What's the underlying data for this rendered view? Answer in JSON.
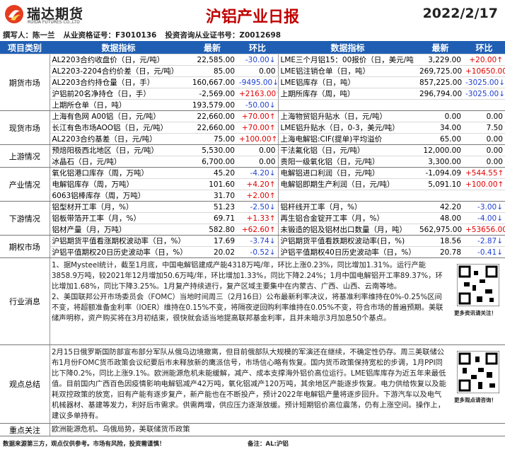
{
  "header": {
    "logo": "瑞达期货",
    "logo_sub": "RUIDA FUTURES CO.,LTD",
    "title": "沪铝产业日报",
    "date": "2022/2/17",
    "author": [
      "撰写人：陈一兰",
      "从业资格证号：F3010136",
      "投资咨询从业证书号：Z0012698"
    ]
  },
  "table": {
    "columns": [
      "项目类别",
      "数据指标",
      "最新",
      "环比",
      "数据指标",
      "最新",
      "环比"
    ],
    "groups": [
      {
        "name": "期货市场",
        "rows": [
          [
            "AL2203合约收盘价（日，元/吨）",
            "22,585.00",
            "-30.00↓",
            "LME三个月铝15：00报价（日，美元/吨",
            "3,229.00",
            "+20.00↑"
          ],
          [
            "AL2203-2204合约价差（日，元/吨）",
            "85.00",
            "0.00",
            "LME铝注销仓单（日，吨）",
            "269,725.00",
            "+10650.00↑"
          ],
          [
            "AL2203合约持仓量（日，手）",
            "160,667.00",
            "-9495.00↓",
            "LME铝库存（日，吨）",
            "857,225.00",
            "-3025.00↓"
          ],
          [
            "沪铝前20名净持仓（日，手）",
            "-2,569.00",
            "+2163.00↑",
            "上期所库存（周，吨）",
            "296,794.00",
            "-3025.00↓"
          ],
          [
            "上期所仓单（日，吨）",
            "193,579.00",
            "-50.00↓"
          ]
        ]
      },
      {
        "name": "现货市场",
        "rows": [
          [
            "上海有色网 A00铝（日，元/吨）",
            "22,660.00",
            "+70.00↑",
            "上海物贸铝升贴水（日，元/吨）",
            "0.00",
            "0.00"
          ],
          [
            "长江有色市场AOO铝（日，元/吨）",
            "22,660.00",
            "+70.00↑",
            "LME铝升贴水（日，0-3，美元/吨）",
            "34.00",
            "7.50"
          ],
          [
            "AL2203合约基差（日，元/吨）",
            "75.00",
            "+100.00↑",
            "上海电解铝:CIF(提单)平均溢价",
            "65.00",
            "0.00"
          ]
        ]
      },
      {
        "name": "上游情况",
        "rows": [
          [
            "预焙阳极西北地区（日，元/吨）",
            "5,530.00",
            "0.00",
            "干法氟化铝（日，元/吨）",
            "12,000.00",
            "0.00"
          ],
          [
            "冰晶石（日，元/吨）",
            "6,700.00",
            "0.00",
            "贵阳一级氧化铝（日，元/吨）",
            "3,300.00",
            "0.00"
          ]
        ]
      },
      {
        "name": "产业情况",
        "rows": [
          [
            "氧化铝港口库存（周，万吨）",
            "45.20",
            "-4.20↓",
            "电解铝进口利润（日，元/吨）",
            "-1,094.09",
            "+544.55↑"
          ],
          [
            "电解铝库存（周，万吨）",
            "101.60",
            "+4.20↑",
            "电解铝即期生产利润（日，元/吨）",
            "5,091.10",
            "+100.00↑"
          ],
          [
            "6063铝棒库存（周，万吨）",
            "31.70",
            "+2.00↑"
          ]
        ]
      },
      {
        "name": "下游情况",
        "rows": [
          [
            "铝型材开工率（月，%）",
            "51.23",
            "-2.50↓",
            "铝杆线开工率（月，%）",
            "42.20",
            "-3.00↓"
          ],
          [
            "铝板带箔开工率（月，%）",
            "69.71",
            "+1.33↑",
            "再生铝合金锭开工率（月，%）",
            "48.00",
            "-4.00↓"
          ],
          [
            "铝材产量（月，万吨）",
            "582.80",
            "+62.60↑",
            "未锻造的铝及铝材出口数量（月，吨）",
            "562,975.00",
            "+53656.00↑"
          ]
        ]
      },
      {
        "name": "期权市场",
        "rows": [
          [
            "沪铝期货平值看涨期权波动率（日，%）",
            "17.69",
            "-3.74↓",
            "沪铝期货平值看跌期权波动率(日，%)",
            "18.56",
            "-2.87↓"
          ],
          [
            "沪铝平值期权20日历史波动率（日，%）",
            "20.02",
            "-0.52↓",
            "沪铝平值期权40日历史波动率（日，%）",
            "20.78",
            "-0.41↓"
          ]
        ]
      }
    ]
  },
  "news": {
    "label": "行业消息",
    "qr_label": "更多资讯请关注！",
    "items": [
      "1、据Mysteel统计，截至1月底，中国电解铝建成产能4318万吨/年，环比上涨0.23%，同比增加1.31%。运行产能3858.9万吨，较2021年12月增加50.6万吨/年，环比增加1.33%，同比下降2.24%；1月中国电解铝开工率89.37%，环比增加1.68%，同比下降3.25%。1月复产持续进行，复产区域主要集中在内蒙古、广西、山西、云南等地。",
      "2、美国联邦公开市场委员会（FOMC）当地时间周三（2月16日）公布最新利率决议，将基准利率维持在0%-0.25%区间不变，将超额准备金利率（IOER）维持在0.15%不变，将隔夜逆回购利率维持在0.05%不变，符合市场的普遍预期。美联储声明称，资产购买将在3月初结束，很快就会适当地提高联邦基金利率，且并未暗示3月加息50个基点。"
    ]
  },
  "view": {
    "label": "观点总结",
    "qr_label": "更多观点请咨询！",
    "text": "2月15日俄罗斯国防部宣布部分军队从俄乌边境撤离，但目前俄部队大规模的军演还在继续，不确定性仍存。周三美联储公布1月份FOMC货币政策会议纪要后市未释放新的鹰派信号，市场信心略有恢复。国内货币政策保持宽松的步调，1月PPI同比下降0.2%，同比上涨9.1%。欧洲能源危机未能缓解，减产、成本支撑海外铝价高位运行。LME铝库库存为近五年来最低值。目前国内广西百色因疫情影响电解铝减产42万吨，氧化铝减产120万吨，其余地区产能逐步恢复。电力供给恢复以及能耗双控政策的放宽，旧有产能有逐步复产，新产能也在不断投产，预计2022年电解铝产量将逐步回升。下游汽车以及电气机械器材、基建等发力，利好后市需求。供需两增，供应压力逐渐放缓。预计短期铝价高位震荡，仍有上涨空间。操作上，建议多单持有。"
  },
  "focus": {
    "label": "重点关注",
    "text": "欧洲能源危机、乌俄局势，美联储货币政策"
  },
  "footer": {
    "disclaimer": "数据来源第三方，观点仅供参考。市场有风险，投资需谨慎！",
    "note": "备注：AL:沪铝"
  }
}
